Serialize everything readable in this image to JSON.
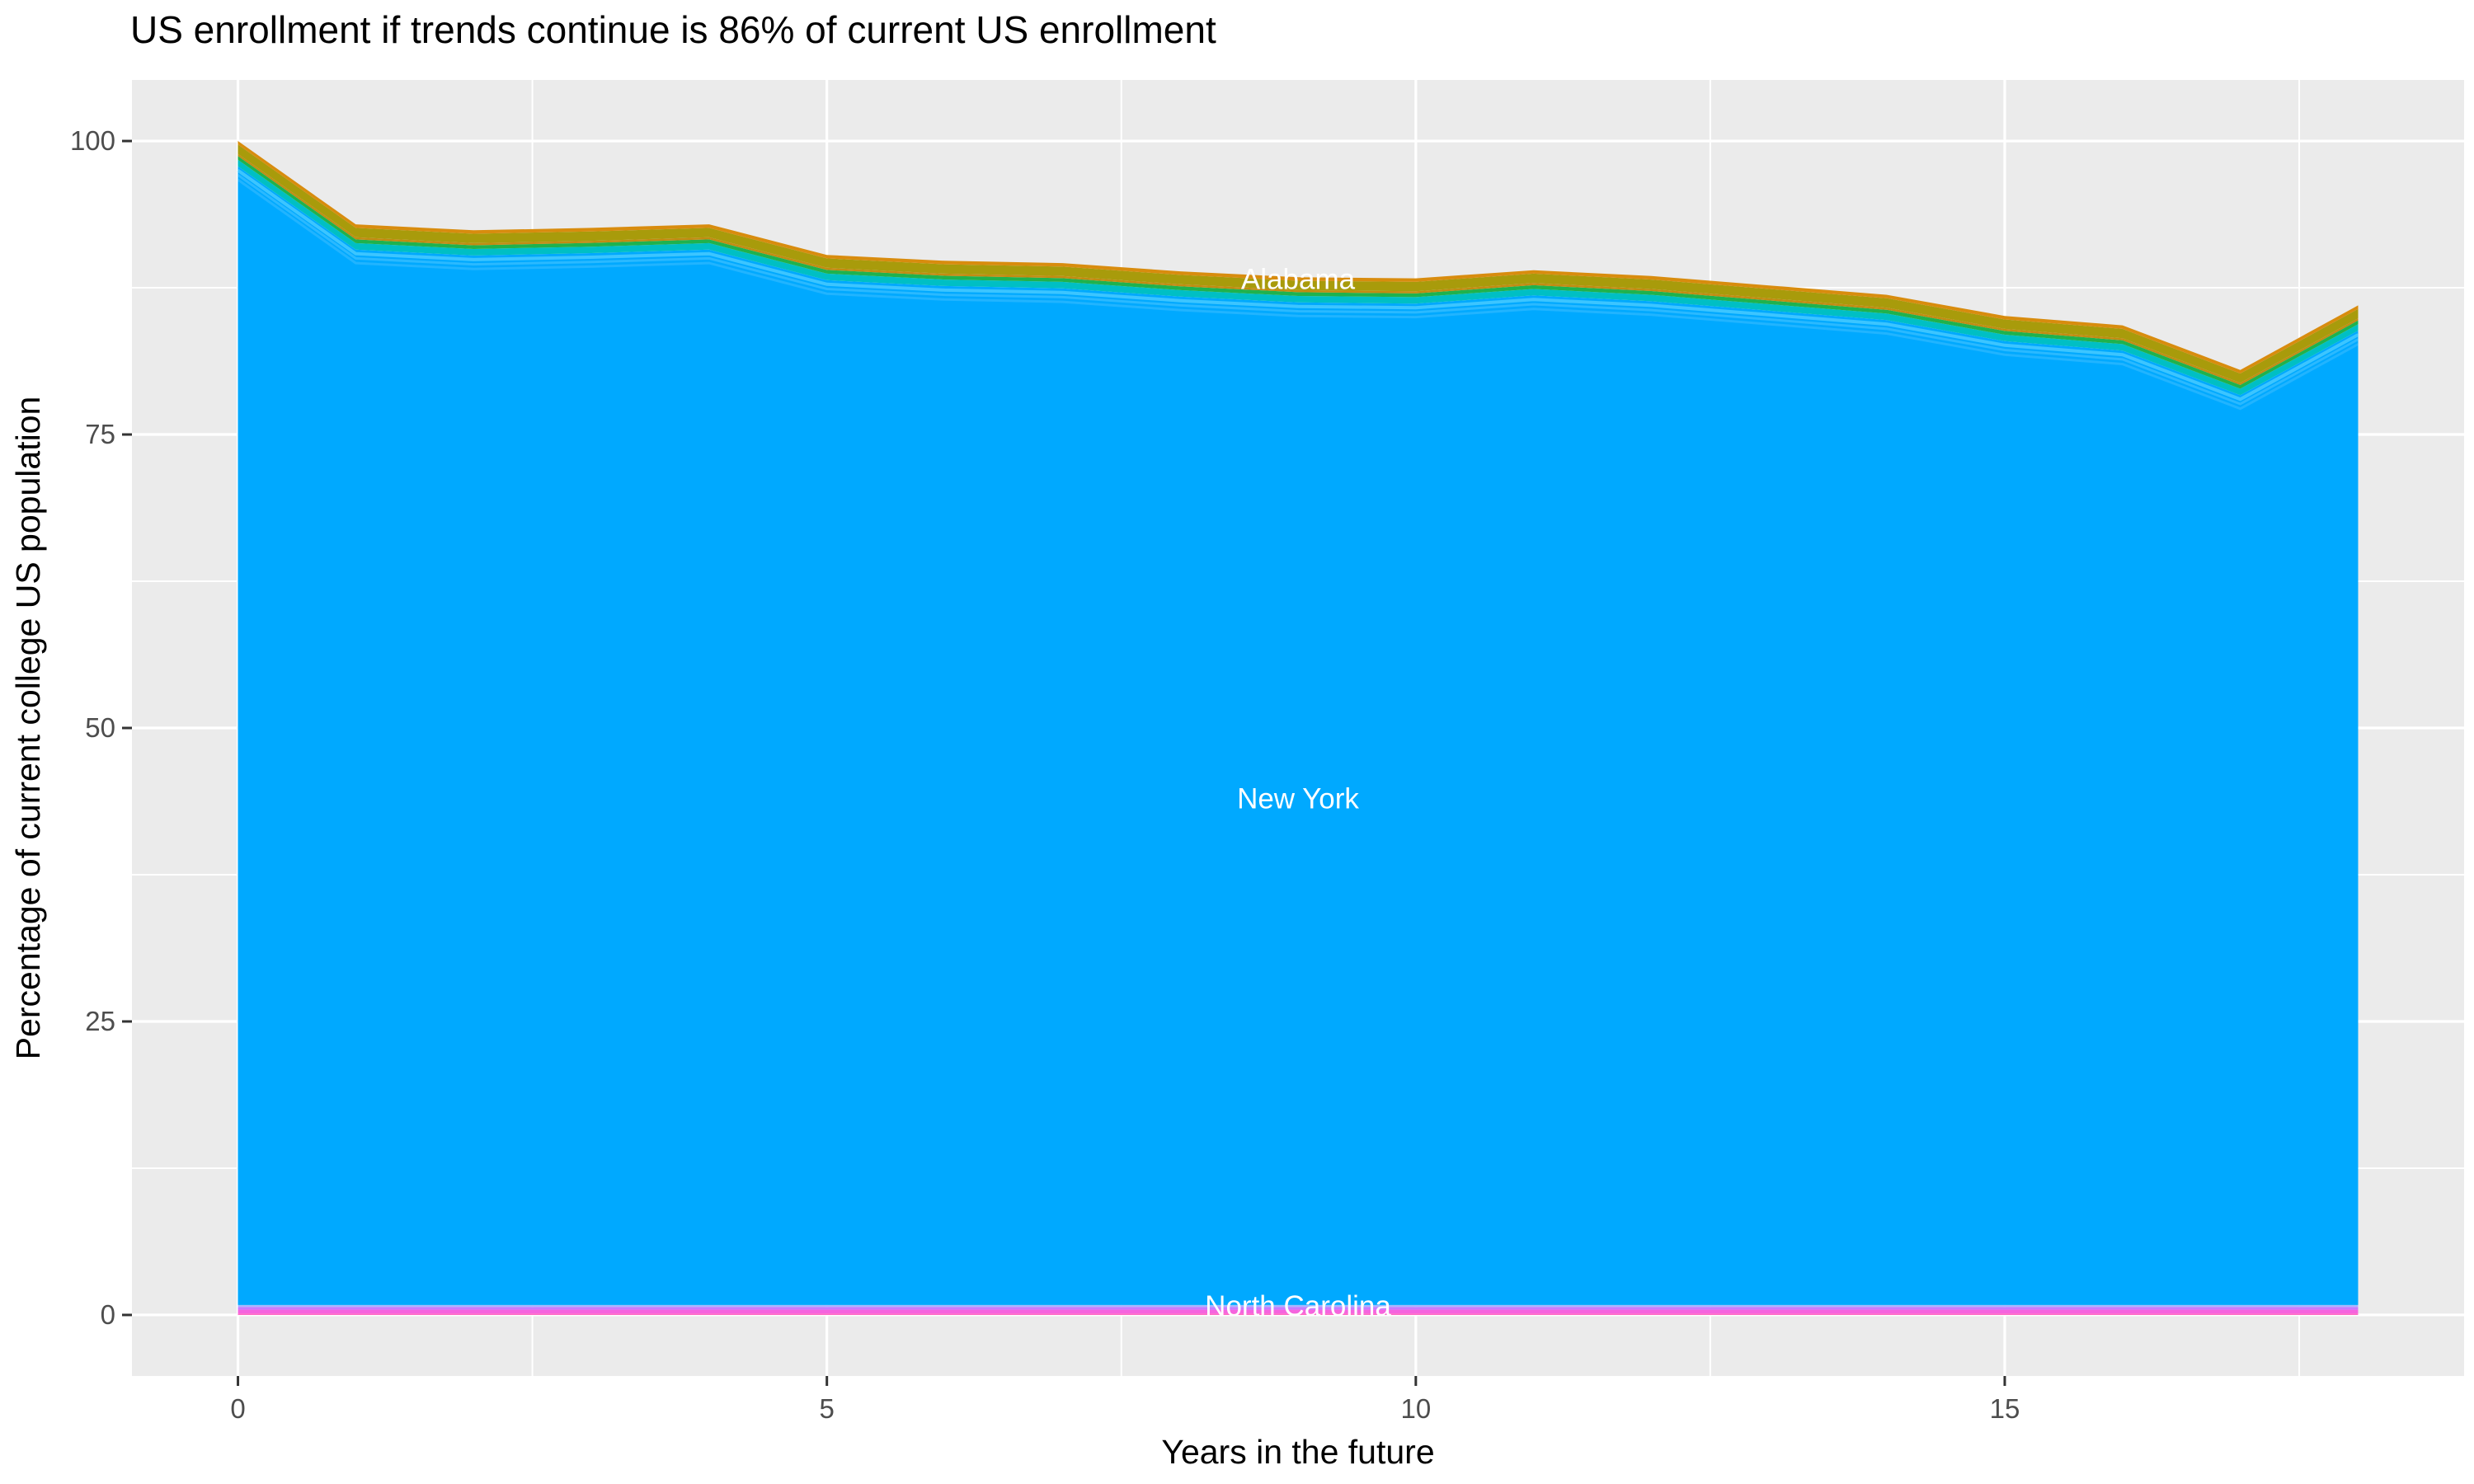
{
  "title": "US enrollment if trends continue is 86% of current US enrollment",
  "colors": {
    "panel_background": "#EBEBEB",
    "gridline": "#FFFFFF",
    "tick_mark": "#333333",
    "tick_label_text": "#4D4D4D",
    "title_text": "#000000",
    "series_label_text": "#FFFFFF",
    "new_york_blue": "#00A9FF",
    "alabama_olive": "#A89B0B",
    "north_carolina_pink": "#F564DE"
  },
  "chart_data": {
    "type": "area",
    "stacked": true,
    "title": "US enrollment if trends continue is 86% of current US enrollment",
    "xlabel": "Years in the future",
    "ylabel": "Percentage of current college US population",
    "xlim": [
      -0.9,
      18.9
    ],
    "ylim": [
      -5.2,
      105.2
    ],
    "x_ticks": [
      "0",
      "5",
      "10",
      "15"
    ],
    "x_tick_values": [
      0,
      5,
      10,
      15
    ],
    "y_ticks": [
      "0",
      "25",
      "50",
      "75",
      "100"
    ],
    "y_tick_values": [
      0,
      25,
      50,
      75,
      100
    ],
    "x_minor_tick_values": [
      2.5,
      7.5,
      12.5,
      17.5
    ],
    "y_minor_tick_values": [
      12.5,
      37.5,
      62.5,
      87.5
    ],
    "grid": true,
    "legend_position": "none",
    "x": [
      0,
      1,
      2,
      3,
      4,
      5,
      6,
      7,
      8,
      9,
      10,
      11,
      12,
      13,
      14,
      15,
      16,
      17,
      18
    ],
    "stack_total_percent": [
      100,
      92.9,
      92.4,
      92.6,
      92.9,
      90.3,
      89.8,
      89.6,
      88.9,
      88.4,
      88.3,
      89.0,
      88.5,
      87.7,
      86.9,
      85.1,
      84.3,
      80.5,
      86.0
    ],
    "series_labels": [
      {
        "label": "Alabama",
        "x": 9,
        "y": 88.25
      },
      {
        "label": "New York",
        "x": 9,
        "y": 44.0
      },
      {
        "label": "North Carolina",
        "x": 9,
        "y": 0.78
      }
    ],
    "top_bands": [
      {
        "name": "band-orange-top",
        "color": "#D88C0E",
        "from_offset": 0.0,
        "to_offset": 0.3
      },
      {
        "name": "band-alabama-olive",
        "color": "#A89B0B",
        "from_offset": 0.3,
        "to_offset": 1.1
      },
      {
        "name": "band-orange-thin",
        "color": "#C28B12",
        "from_offset": 1.1,
        "to_offset": 1.28
      },
      {
        "name": "band-green",
        "color": "#1FB24D",
        "from_offset": 1.28,
        "to_offset": 1.6
      },
      {
        "name": "band-cyan",
        "color": "#00BFC4",
        "from_offset": 1.6,
        "to_offset": 2.15
      }
    ],
    "main_band": {
      "name": "band-new-york",
      "color": "#00A9FF",
      "from_offset": 2.15,
      "bottom_value": 0.85
    },
    "bottom_bands": [
      {
        "name": "band-lavender",
        "color": "#A8B6FF",
        "top_value": 0.85,
        "bottom_value": 0.68
      },
      {
        "name": "band-violet",
        "color": "#C77CFF",
        "top_value": 0.68,
        "bottom_value": 0.45
      },
      {
        "name": "band-north-carolina-pink",
        "color": "#F564DE",
        "top_value": 0.45,
        "bottom_value": 0.12
      },
      {
        "name": "band-magenta",
        "color": "#FF61C3",
        "top_value": 0.12,
        "bottom_value": 0.0
      }
    ],
    "faint_stripes_offsets": [
      {
        "offset": 2.5,
        "color": "rgba(120,225,255,0.5)",
        "width": 4
      },
      {
        "offset": 2.9,
        "color": "rgba(120,215,255,0.35)",
        "width": 3
      },
      {
        "offset": 3.3,
        "color": "rgba(130,215,255,0.25)",
        "width": 3
      }
    ]
  }
}
